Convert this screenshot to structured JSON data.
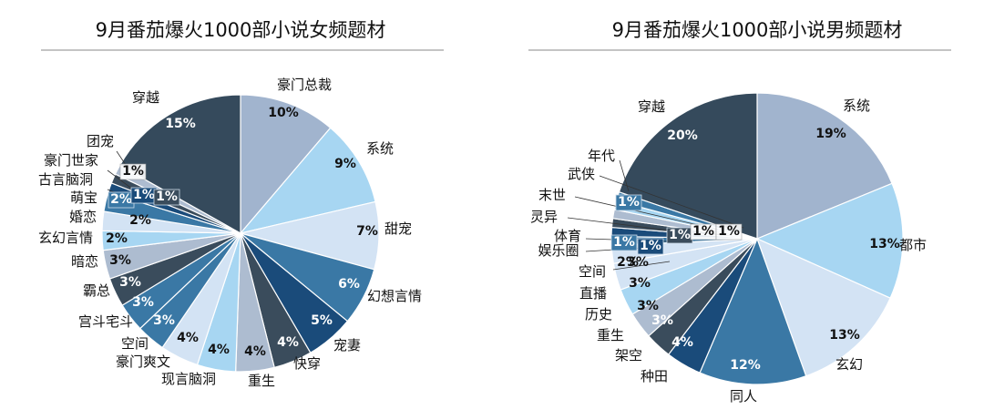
{
  "chart_data": [
    {
      "type": "pie",
      "title": "9月番茄爆火1000部小说女频题材",
      "categories": [
        "豪门总裁",
        "系统",
        "甜宠",
        "幻想言情",
        "宠妻",
        "快穿",
        "重生",
        "现言脑洞",
        "豪门爽文",
        "空间",
        "宫斗宅斗",
        "霸总",
        "暗恋",
        "玄幻言情",
        "婚恋",
        "萌宝",
        "古言脑洞",
        "豪门世家",
        "团宠",
        "穿越"
      ],
      "values": [
        10,
        9,
        7,
        6,
        5,
        4,
        4,
        4,
        4,
        3,
        3,
        3,
        3,
        2,
        2,
        2,
        1,
        1,
        1,
        15
      ],
      "value_labels": [
        "10%",
        "9%",
        "7%",
        "6%",
        "5%",
        "4%",
        "4%",
        "4%",
        "4%",
        "3%",
        "3%",
        "3%",
        "3%",
        "2%",
        "2%",
        "2%",
        "1%",
        "1%",
        "1%",
        "15%"
      ],
      "colors": [
        "#a1b4ce",
        "#a7d6f2",
        "#d3e3f4",
        "#3a78a5",
        "#1a4b7a",
        "#3a4c5c",
        "#adbcd0",
        "#a7d6f2",
        "#d3e3f4",
        "#3a78a5",
        "#3a78a5",
        "#3a4c5c",
        "#adbcd0",
        "#a7d6f2",
        "#d3e3f4",
        "#3a78a5",
        "#1a4b7a",
        "#3a4c5c",
        "#adbcd0",
        "#354a5c"
      ],
      "legend": "none"
    },
    {
      "type": "pie",
      "title": "9月番茄爆火1000部小说男频题材",
      "categories": [
        "系统",
        "都市",
        "玄幻",
        "同人",
        "种田",
        "架空",
        "重生",
        "历史",
        "直播",
        "空间",
        "娱乐圈",
        "体育",
        "灵异",
        "末世",
        "武侠",
        "年代",
        "穿越"
      ],
      "values": [
        19,
        13,
        13,
        12,
        4,
        3,
        3,
        3,
        3,
        2,
        1,
        1,
        1,
        1,
        1,
        1,
        20
      ],
      "value_labels": [
        "19%",
        "13%",
        "13%",
        "12%",
        "4%",
        "3%",
        "3%",
        "3%",
        "3%",
        "2%",
        "1%",
        "1%",
        "1%",
        "1%",
        "1%",
        "1%",
        "20%"
      ],
      "colors": [
        "#a1b4ce",
        "#a7d6f2",
        "#d3e3f4",
        "#3a78a5",
        "#1a4b7a",
        "#3a4c5c",
        "#adbcd0",
        "#a7d6f2",
        "#d3e3f4",
        "#d3e3f4",
        "#3a78a5",
        "#1a4b7a",
        "#3a4c5c",
        "#adbcd0",
        "#a7d6f2",
        "#3a78a5",
        "#354a5c"
      ],
      "legend": "none"
    }
  ]
}
